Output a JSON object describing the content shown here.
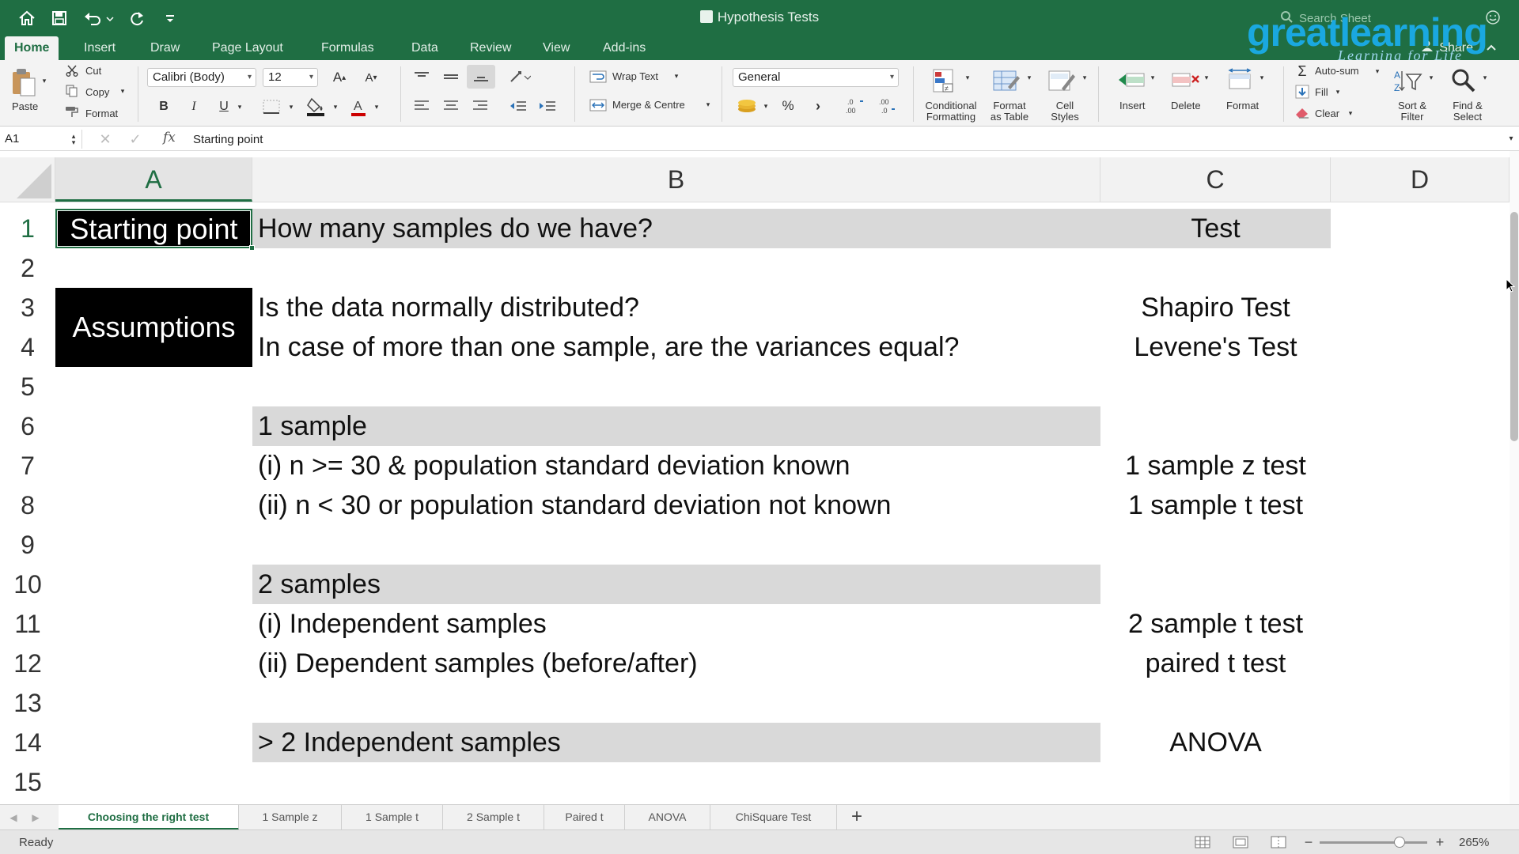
{
  "window": {
    "title": "Hypothesis Tests"
  },
  "search": {
    "placeholder": "Search Sheet"
  },
  "logo": {
    "brand_part1": "great",
    "brand_part2": "learning",
    "tagline": "Learning for Life"
  },
  "ribbon_tabs": [
    "Home",
    "Insert",
    "Draw",
    "Page Layout",
    "Formulas",
    "Data",
    "Review",
    "View",
    "Add-ins"
  ],
  "share_label": "Share",
  "ribbon": {
    "paste": "Paste",
    "cut": "Cut",
    "copy": "Copy",
    "format_painter": "Format",
    "font_name": "Calibri (Body)",
    "font_size": "12",
    "wrap_text": "Wrap Text",
    "merge_centre": "Merge & Centre",
    "number_format": "General",
    "percent": "%",
    "conditional_formatting": [
      "Conditional",
      "Formatting"
    ],
    "format_as_table": [
      "Format",
      "as Table"
    ],
    "cell_styles": [
      "Cell",
      "Styles"
    ],
    "insert": "Insert",
    "delete": "Delete",
    "format": "Format",
    "autosum": "Auto-sum",
    "fill": "Fill",
    "clear": "Clear",
    "sort_filter": [
      "Sort &",
      "Filter"
    ],
    "find_select": [
      "Find &",
      "Select"
    ]
  },
  "formula_bar": {
    "name_box": "A1",
    "fx": "fx",
    "content": "Starting point"
  },
  "columns": [
    "A",
    "B",
    "C",
    "D"
  ],
  "rows": [
    "1",
    "2",
    "3",
    "4",
    "5",
    "6",
    "7",
    "8",
    "9",
    "10",
    "11",
    "12",
    "13",
    "14",
    "15"
  ],
  "cells": {
    "A1": "Starting point",
    "B1": "How many samples do we have?",
    "C1": "Test",
    "A3": "Assumptions",
    "B3": "Is the data normally distributed?",
    "C3": "Shapiro Test",
    "B4": "In case of more than one sample, are the variances equal?",
    "C4": "Levene's Test",
    "B6": "1 sample",
    "B7": "(i) n >= 30 & population standard deviation known",
    "C7": "1 sample z test",
    "B8": "(ii) n < 30 or population standard deviation not known",
    "C8": "1 sample t test",
    "B10": "2 samples",
    "B11": "(i) Independent samples",
    "C11": "2 sample t test",
    "B12": "(ii) Dependent samples (before/after)",
    "C12": "paired t test",
    "B14": "> 2 Independent samples",
    "C14": "ANOVA"
  },
  "sheet_tabs": [
    "Choosing the right test",
    "1 Sample z",
    "1 Sample t",
    "2 Sample t",
    "Paired t",
    "ANOVA",
    "ChiSquare Test"
  ],
  "status": {
    "ready": "Ready",
    "zoom": "265%"
  },
  "colors": {
    "excel_green": "#1f6e43",
    "band_gray": "#d9d9d9",
    "black_fill": "#000000",
    "logo_blue": "#1aa8e0"
  }
}
